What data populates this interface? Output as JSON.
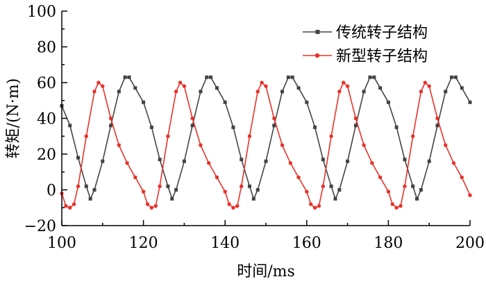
{
  "chart_data": {
    "type": "line",
    "title": "",
    "xlabel": "时间/ms",
    "ylabel": "转矩/(N·m)",
    "xlim": [
      100,
      200
    ],
    "ylim": [
      -20,
      100
    ],
    "xticks": [
      100,
      120,
      140,
      160,
      180,
      200
    ],
    "yticks": [
      -20,
      0,
      20,
      40,
      60,
      80,
      100
    ],
    "grid": false,
    "legend_position": "top-right",
    "series": [
      {
        "name": "传统转子结构",
        "color": "#444444",
        "marker": "square",
        "x": [
          100,
          102,
          104,
          106,
          107,
          108,
          110,
          112,
          114,
          115.5,
          116.5,
          118,
          120,
          122,
          124,
          126,
          127,
          128,
          130,
          132,
          134,
          135.5,
          136.5,
          138,
          140,
          142,
          144,
          146,
          147,
          148,
          150,
          152,
          154,
          155.5,
          156.5,
          158,
          160,
          162,
          164,
          166,
          167,
          168,
          170,
          172,
          174,
          175.5,
          176.5,
          178,
          180,
          182,
          184,
          186,
          187,
          188,
          190,
          192,
          194,
          195.5,
          196.5,
          198,
          200
        ],
        "y": [
          47,
          36,
          18,
          2,
          -5,
          0,
          16,
          36,
          55,
          63,
          63,
          57,
          49,
          35,
          17,
          2,
          -5,
          0,
          16,
          36,
          55,
          63,
          63,
          57,
          49,
          35,
          17,
          2,
          -5,
          0,
          16,
          36,
          55,
          63,
          63,
          57,
          49,
          35,
          17,
          2,
          -5,
          0,
          16,
          36,
          55,
          63,
          63,
          57,
          49,
          35,
          17,
          2,
          -5,
          0,
          16,
          36,
          55,
          63,
          63,
          57,
          49
        ]
      },
      {
        "name": "新型转子结构",
        "color": "#e8312a",
        "marker": "circle",
        "x": [
          100,
          101,
          102,
          103,
          104,
          106,
          108,
          109,
          110,
          112,
          114,
          116,
          118,
          120,
          121,
          122,
          123,
          124,
          126,
          128,
          129,
          130,
          132,
          134,
          136,
          138,
          140,
          141,
          142,
          143,
          144,
          146,
          148,
          149,
          150,
          152,
          154,
          156,
          158,
          160,
          161,
          162,
          163,
          164,
          166,
          168,
          169,
          170,
          172,
          174,
          176,
          178,
          180,
          181,
          182,
          183,
          184,
          186,
          188,
          189,
          190,
          192,
          194,
          196,
          198,
          200
        ],
        "y": [
          -2,
          -9,
          -10,
          -8,
          2,
          30,
          55,
          60,
          58,
          40,
          25,
          15,
          7,
          -1,
          -8,
          -10,
          -9,
          2,
          30,
          55,
          60,
          58,
          40,
          25,
          15,
          7,
          -1,
          -8,
          -10,
          -9,
          2,
          30,
          55,
          60,
          58,
          40,
          25,
          15,
          7,
          -1,
          -8,
          -10,
          -9,
          2,
          30,
          55,
          60,
          58,
          40,
          25,
          15,
          7,
          -1,
          -8,
          -10,
          -9,
          2,
          30,
          55,
          60,
          58,
          40,
          25,
          15,
          7,
          -3
        ]
      }
    ]
  }
}
